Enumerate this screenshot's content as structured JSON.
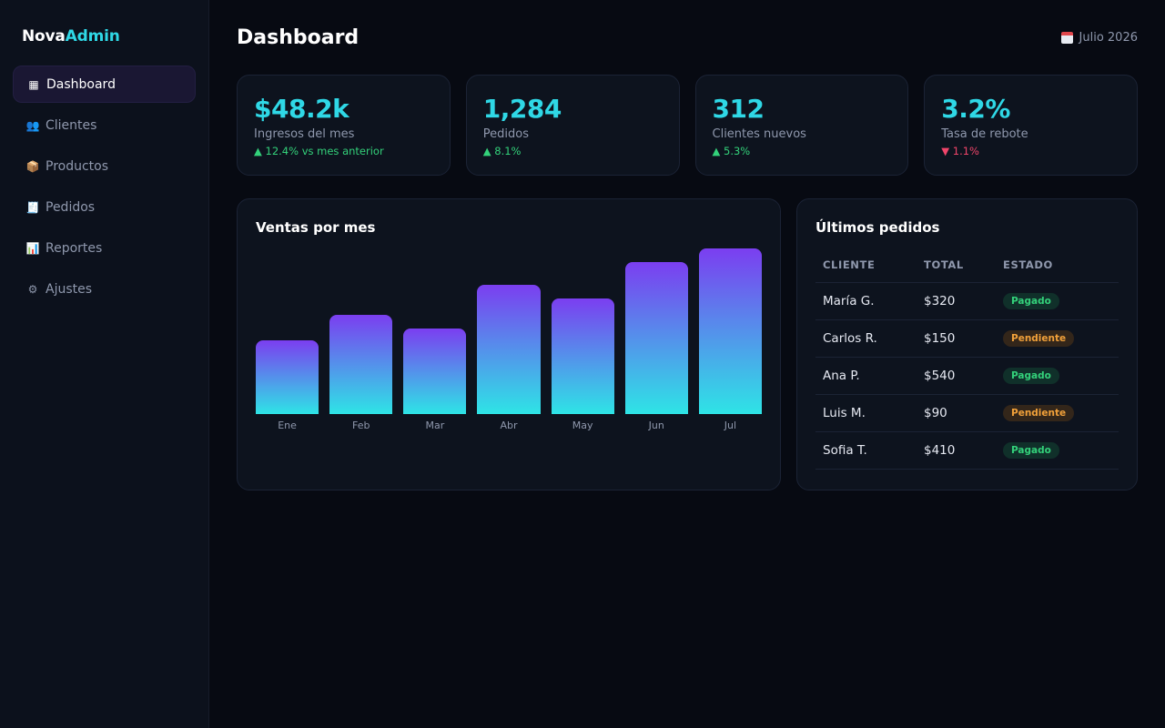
{
  "brand": {
    "first": "Nova",
    "second": "Admin"
  },
  "sidebar": {
    "items": [
      {
        "icon": "▦",
        "icon_name": "grid-icon",
        "label": "Dashboard",
        "active": true
      },
      {
        "icon": "👥",
        "icon_name": "users-icon",
        "label": "Clientes"
      },
      {
        "icon": "📦",
        "icon_name": "package-icon",
        "label": "Productos"
      },
      {
        "icon": "🧾",
        "icon_name": "receipt-icon",
        "label": "Pedidos"
      },
      {
        "icon": "📊",
        "icon_name": "chart-icon",
        "label": "Reportes"
      },
      {
        "icon": "⚙",
        "icon_name": "gear-icon",
        "label": "Ajustes"
      }
    ]
  },
  "header": {
    "title": "Dashboard",
    "date": "Julio 2026"
  },
  "stats": [
    {
      "value": "$48.2k",
      "label": "Ingresos del mes",
      "delta": "▲ 12.4% vs mes anterior",
      "trend": "up"
    },
    {
      "value": "1,284",
      "label": "Pedidos",
      "delta": "▲ 8.1%",
      "trend": "up"
    },
    {
      "value": "312",
      "label": "Clientes nuevos",
      "delta": "▲ 5.3%",
      "trend": "up"
    },
    {
      "value": "3.2%",
      "label": "Tasa de rebote",
      "delta": "▼ 1.1%",
      "trend": "down"
    }
  ],
  "sales_chart": {
    "title": "Ventas por mes"
  },
  "chart_data": {
    "type": "bar",
    "categories": [
      "Ene",
      "Feb",
      "Mar",
      "Abr",
      "May",
      "Jun",
      "Jul"
    ],
    "values": [
      44,
      59,
      51,
      77,
      69,
      91,
      99
    ],
    "ylim": [
      0,
      100
    ],
    "grid": false,
    "colors": {
      "top": "#7b3ef0",
      "bottom": "#2ee4e6"
    }
  },
  "orders": {
    "title": "Últimos pedidos",
    "columns": [
      "CLIENTE",
      "TOTAL",
      "ESTADO"
    ],
    "rows": [
      {
        "client": "María G.",
        "total": "$320",
        "status": "Pagado",
        "status_type": "paid"
      },
      {
        "client": "Carlos R.",
        "total": "$150",
        "status": "Pendiente",
        "status_type": "pending"
      },
      {
        "client": "Ana P.",
        "total": "$540",
        "status": "Pagado",
        "status_type": "paid"
      },
      {
        "client": "Luis M.",
        "total": "$90",
        "status": "Pendiente",
        "status_type": "pending"
      },
      {
        "client": "Sofia T.",
        "total": "$410",
        "status": "Pagado",
        "status_type": "paid"
      }
    ]
  },
  "colors": {
    "accent": "#2fd8e6",
    "up": "#33d17a",
    "down": "#f0456a",
    "paid": "#33d17a",
    "pending": "#f2a13a"
  }
}
